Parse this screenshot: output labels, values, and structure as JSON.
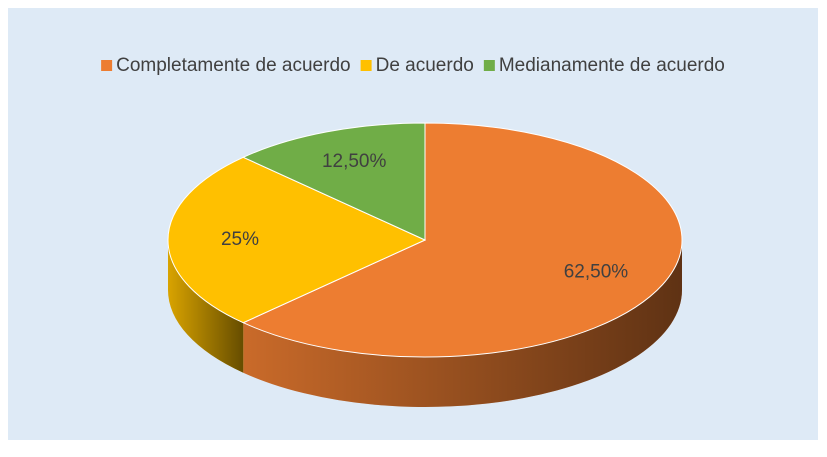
{
  "chart_data": {
    "type": "pie",
    "categories": [
      "Completamente de acuerdo",
      "De acuerdo",
      "Medianamente de acuerdo"
    ],
    "values": [
      62.5,
      25,
      12.5
    ],
    "value_labels": [
      "62,50%",
      "25%",
      "12,50%"
    ],
    "colors": [
      "#ED7D31",
      "#FFC000",
      "#70AD47"
    ],
    "legend": "top"
  }
}
